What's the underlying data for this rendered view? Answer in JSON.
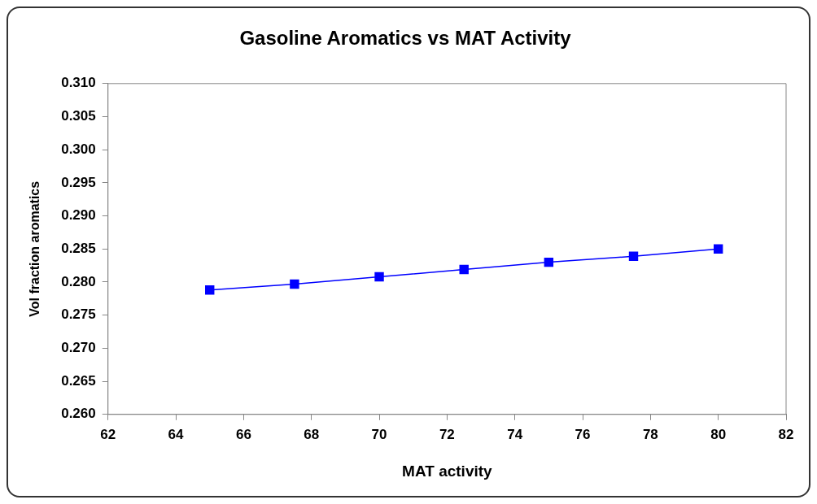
{
  "chart_data": {
    "type": "line",
    "title": "Gasoline Aromatics vs MAT Activity",
    "xlabel": "MAT activity",
    "ylabel": "Vol fraction aromatics",
    "x": [
      65,
      67.5,
      70,
      72.5,
      75,
      77.5,
      80
    ],
    "series": [
      {
        "color": "#0000ff",
        "values": [
          0.2788,
          0.2797,
          0.2808,
          0.2819,
          0.283,
          0.2839,
          0.285
        ]
      }
    ],
    "marker": "square",
    "line_style": "solid",
    "legend": false,
    "xlim": [
      62,
      82
    ],
    "xticks": [
      62,
      64,
      66,
      68,
      70,
      72,
      74,
      76,
      78,
      80,
      82
    ],
    "ylim": [
      0.26,
      0.31
    ],
    "yticks": [
      {
        "value": 0.26,
        "label": "0.260"
      },
      {
        "value": 0.265,
        "label": "0.265"
      },
      {
        "value": 0.27,
        "label": "0.270"
      },
      {
        "value": 0.275,
        "label": "0.275"
      },
      {
        "value": 0.28,
        "label": "0.280"
      },
      {
        "value": 0.285,
        "label": "0.285"
      },
      {
        "value": 0.29,
        "label": "0.290"
      },
      {
        "value": 0.295,
        "label": "0.295"
      },
      {
        "value": 0.3,
        "label": "0.300"
      },
      {
        "value": 0.305,
        "label": "0.305"
      },
      {
        "value": 0.31,
        "label": "0.310"
      }
    ]
  }
}
